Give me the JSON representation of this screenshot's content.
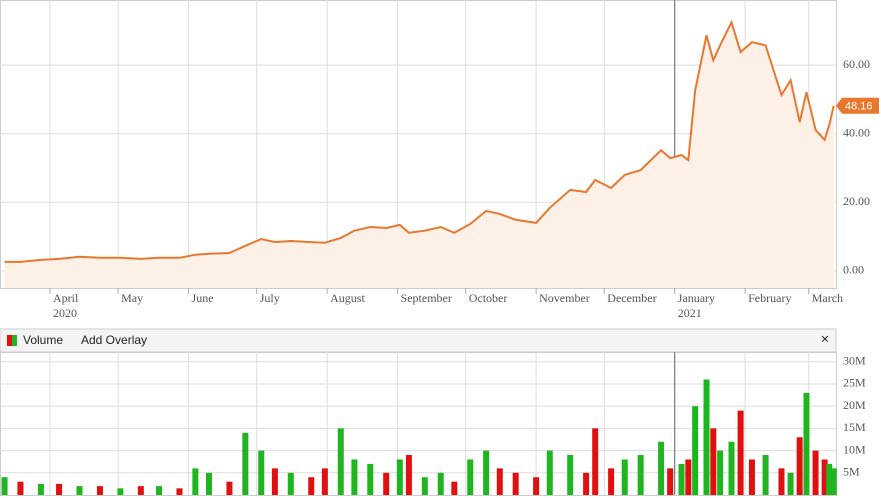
{
  "chart_data": [
    {
      "type": "line",
      "color": "#e8782f",
      "fill": "#fdf0e7",
      "x": [
        11,
        18,
        27,
        35,
        44,
        53,
        62,
        71,
        79,
        88,
        95,
        101,
        110,
        117,
        124,
        130,
        137,
        146,
        152,
        159,
        165,
        172,
        179,
        185,
        189,
        196,
        203,
        209,
        216,
        223,
        229,
        236,
        245,
        251,
        260,
        267,
        271,
        278,
        284,
        291,
        300,
        304,
        309,
        312,
        315,
        320,
        323,
        326,
        331,
        335,
        340,
        346,
        353,
        357,
        361,
        364,
        368,
        372,
        374,
        376
      ],
      "values": [
        2.6,
        2.6,
        3.2,
        3.5,
        4.1,
        3.8,
        3.8,
        3.5,
        3.8,
        3.8,
        4.7,
        5.0,
        5.2,
        7.3,
        9.3,
        8.4,
        8.7,
        8.4,
        8.2,
        9.6,
        11.7,
        12.8,
        12.5,
        13.4,
        11.1,
        11.7,
        12.8,
        11.1,
        13.7,
        17.5,
        16.6,
        14.9,
        14.0,
        18.4,
        23.6,
        23.0,
        26.5,
        24.2,
        28.0,
        29.4,
        35.2,
        32.9,
        33.8,
        32.3,
        52.7,
        68.7,
        61.4,
        65.8,
        72.5,
        63.8,
        66.7,
        65.8,
        51.3,
        55.6,
        43.4,
        52.1,
        41.1,
        38.2,
        42.5,
        48.16
      ],
      "xlim": [
        9,
        377
      ],
      "ylim": [
        -5,
        79
      ],
      "yticks": [
        {
          "value": 0,
          "label": "0.00"
        },
        {
          "value": 20,
          "label": "20.00"
        },
        {
          "value": 40,
          "label": "40.00"
        },
        {
          "value": 60,
          "label": "60.00"
        }
      ],
      "xticks": [
        {
          "value": 31,
          "label": "April"
        },
        {
          "value": 61,
          "label": "May"
        },
        {
          "value": 92,
          "label": "June"
        },
        {
          "value": 122,
          "label": "July"
        },
        {
          "value": 153,
          "label": "August"
        },
        {
          "value": 184,
          "label": "September"
        },
        {
          "value": 214,
          "label": "October"
        },
        {
          "value": 245,
          "label": "November"
        },
        {
          "value": 275,
          "label": "December"
        },
        {
          "value": 306,
          "label": "January"
        },
        {
          "value": 337,
          "label": "February"
        },
        {
          "value": 365,
          "label": "March"
        }
      ],
      "x_year_labels": [
        {
          "value": 31,
          "label": "2020"
        },
        {
          "value": 306,
          "label": "2021"
        }
      ],
      "grid": true
    },
    {
      "type": "bar",
      "name": "Volume",
      "overlay_button": "Add Overlay",
      "close_button": "×",
      "x": [
        11,
        18,
        27,
        35,
        44,
        53,
        62,
        71,
        79,
        88,
        95,
        101,
        110,
        117,
        124,
        130,
        137,
        146,
        152,
        159,
        165,
        172,
        179,
        185,
        189,
        196,
        203,
        209,
        216,
        223,
        229,
        236,
        245,
        251,
        260,
        267,
        271,
        278,
        284,
        291,
        300,
        304,
        309,
        312,
        315,
        320,
        323,
        326,
        331,
        335,
        340,
        346,
        353,
        357,
        361,
        364,
        368,
        372,
        374,
        376
      ],
      "values": [
        4,
        3,
        2.5,
        2.5,
        2,
        2,
        1.5,
        2,
        2,
        1.5,
        6,
        5,
        3,
        14,
        10,
        6,
        5,
        4,
        6,
        15,
        8,
        7,
        5,
        8,
        9,
        4,
        5,
        3,
        8,
        10,
        6,
        5,
        4,
        10,
        9,
        5,
        15,
        6,
        8,
        9,
        12,
        6,
        7,
        8,
        20,
        26,
        15,
        10,
        12,
        19,
        8,
        9,
        6,
        5,
        13,
        23,
        10,
        8,
        7,
        6
      ],
      "colors": [
        "#1fb51f",
        "#e01010",
        "#1fb51f",
        "#e01010",
        "#1fb51f",
        "#e01010",
        "#1fb51f",
        "#e01010",
        "#1fb51f",
        "#e01010",
        "#1fb51f",
        "#1fb51f",
        "#e01010",
        "#1fb51f",
        "#1fb51f",
        "#e01010",
        "#1fb51f",
        "#e01010",
        "#e01010",
        "#1fb51f",
        "#1fb51f",
        "#1fb51f",
        "#e01010",
        "#1fb51f",
        "#e01010",
        "#1fb51f",
        "#1fb51f",
        "#e01010",
        "#1fb51f",
        "#1fb51f",
        "#e01010",
        "#e01010",
        "#e01010",
        "#1fb51f",
        "#1fb51f",
        "#e01010",
        "#e01010",
        "#e01010",
        "#1fb51f",
        "#1fb51f",
        "#1fb51f",
        "#e01010",
        "#1fb51f",
        "#e01010",
        "#1fb51f",
        "#1fb51f",
        "#e01010",
        "#1fb51f",
        "#1fb51f",
        "#e01010",
        "#e01010",
        "#1fb51f",
        "#e01010",
        "#1fb51f",
        "#e01010",
        "#1fb51f",
        "#e01010",
        "#e01010",
        "#1fb51f",
        "#1fb51f"
      ],
      "xlim": [
        9,
        377
      ],
      "ylim": [
        0,
        32.2
      ],
      "yticks": [
        {
          "value": 5,
          "label": "5M"
        },
        {
          "value": 10,
          "label": "10M"
        },
        {
          "value": 15,
          "label": "15M"
        },
        {
          "value": 20,
          "label": "20M"
        },
        {
          "value": 25,
          "label": "25M"
        },
        {
          "value": 30,
          "label": "30M"
        }
      ],
      "grid": true
    }
  ]
}
